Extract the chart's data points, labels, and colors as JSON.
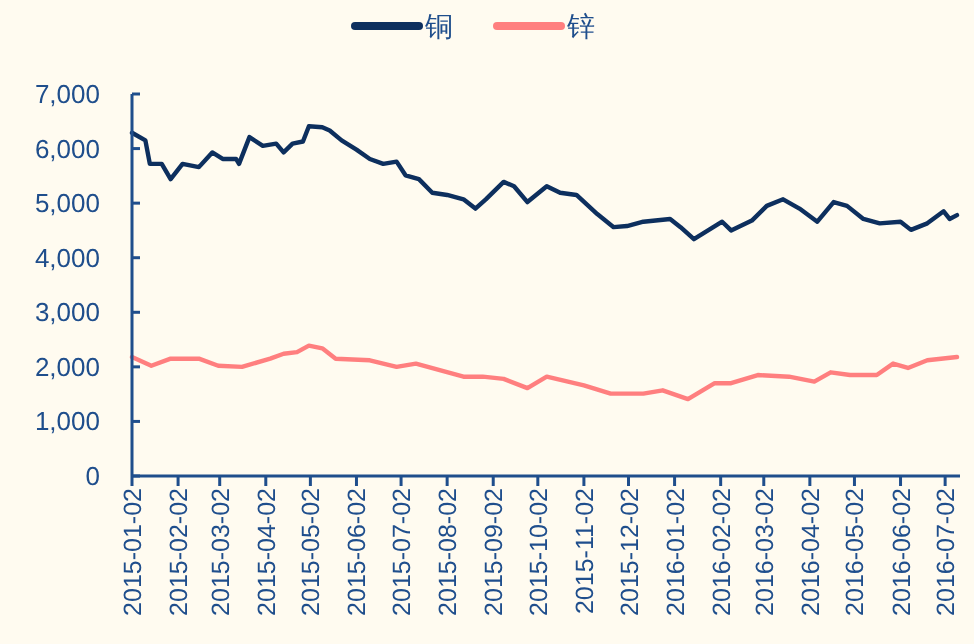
{
  "chart_data": {
    "type": "line",
    "xlim": [
      "2015-01-02",
      "2016-07-12"
    ],
    "xticks": [
      "2015-01-02",
      "2015-02-02",
      "2015-03-02",
      "2015-04-02",
      "2015-05-02",
      "2015-06-02",
      "2015-07-02",
      "2015-08-02",
      "2015-09-02",
      "2015-10-02",
      "2015-11-02",
      "2015-12-02",
      "2016-01-02",
      "2016-02-02",
      "2016-03-02",
      "2016-04-02",
      "2016-05-02",
      "2016-06-02",
      "2016-07-02"
    ],
    "ylim": [
      0,
      7000
    ],
    "yticks": [
      {
        "value": 0,
        "label": "0"
      },
      {
        "value": 1000,
        "label": "1,000"
      },
      {
        "value": 2000,
        "label": "2,000"
      },
      {
        "value": 3000,
        "label": "3,000"
      },
      {
        "value": 4000,
        "label": "4,000"
      },
      {
        "value": 5000,
        "label": "5,000"
      },
      {
        "value": 6000,
        "label": "6,000"
      },
      {
        "value": 7000,
        "label": "7,000"
      }
    ],
    "grid": false,
    "legend": "top",
    "marker": "none",
    "line_style": "solid",
    "series": [
      {
        "name": "铜",
        "color": "#0d2f5e",
        "x": [
          "2015-01-02",
          "2015-01-11",
          "2015-01-14",
          "2015-01-22",
          "2015-01-28",
          "2015-02-05",
          "2015-02-16",
          "2015-02-25",
          "2015-03-04",
          "2015-03-13",
          "2015-03-15",
          "2015-03-22",
          "2015-03-31",
          "2015-04-09",
          "2015-04-14",
          "2015-04-20",
          "2015-04-27",
          "2015-05-01",
          "2015-05-10",
          "2015-05-15",
          "2015-05-23",
          "2015-06-02",
          "2015-06-11",
          "2015-06-20",
          "2015-06-29",
          "2015-07-05",
          "2015-07-14",
          "2015-07-23",
          "2015-08-02",
          "2015-08-13",
          "2015-08-21",
          "2015-08-28",
          "2015-09-09",
          "2015-09-16",
          "2015-09-25",
          "2015-10-08",
          "2015-10-17",
          "2015-10-28",
          "2015-11-11",
          "2015-11-22",
          "2015-12-01",
          "2015-12-12",
          "2015-12-30",
          "2016-01-06",
          "2016-01-15",
          "2016-02-03",
          "2016-02-09",
          "2016-02-23",
          "2016-03-04",
          "2016-03-15",
          "2016-03-26",
          "2016-04-07",
          "2016-04-18",
          "2016-04-27",
          "2016-05-08",
          "2016-05-19",
          "2016-06-02",
          "2016-06-09",
          "2016-06-20",
          "2016-07-01",
          "2016-07-05",
          "2016-07-10"
        ],
        "values": [
          6290,
          6150,
          5720,
          5720,
          5440,
          5720,
          5660,
          5930,
          5810,
          5810,
          5720,
          6210,
          6050,
          6090,
          5930,
          6090,
          6130,
          6410,
          6390,
          6330,
          6150,
          5980,
          5810,
          5720,
          5760,
          5510,
          5440,
          5190,
          5150,
          5070,
          4900,
          5070,
          5390,
          5310,
          5020,
          5310,
          5190,
          5150,
          4800,
          4560,
          4580,
          4660,
          4710,
          4560,
          4340,
          4660,
          4500,
          4680,
          4950,
          5070,
          4900,
          4660,
          5020,
          4950,
          4710,
          4630,
          4660,
          4510,
          4630,
          4850,
          4710,
          4780
        ]
      },
      {
        "name": "锌",
        "color": "#ff7f7f",
        "x": [
          "2015-01-02",
          "2015-01-15",
          "2015-01-28",
          "2015-02-16",
          "2015-03-01",
          "2015-03-17",
          "2015-04-05",
          "2015-04-14",
          "2015-04-23",
          "2015-05-01",
          "2015-05-10",
          "2015-05-19",
          "2015-06-11",
          "2015-06-29",
          "2015-07-12",
          "2015-08-13",
          "2015-08-26",
          "2015-09-09",
          "2015-09-25",
          "2015-10-08",
          "2015-11-02",
          "2015-11-20",
          "2015-12-12",
          "2015-12-25",
          "2016-01-11",
          "2016-01-29",
          "2016-02-09",
          "2016-02-27",
          "2016-03-19",
          "2016-04-05",
          "2016-04-16",
          "2016-04-29",
          "2016-05-17",
          "2016-05-28",
          "2016-06-07",
          "2016-06-20",
          "2016-07-10"
        ],
        "values": [
          2180,
          2020,
          2150,
          2150,
          2020,
          2000,
          2150,
          2240,
          2270,
          2390,
          2340,
          2150,
          2120,
          2000,
          2060,
          1820,
          1820,
          1780,
          1610,
          1820,
          1660,
          1510,
          1510,
          1570,
          1410,
          1700,
          1700,
          1850,
          1820,
          1730,
          1900,
          1850,
          1850,
          2060,
          1980,
          2120,
          2180
        ]
      }
    ]
  }
}
